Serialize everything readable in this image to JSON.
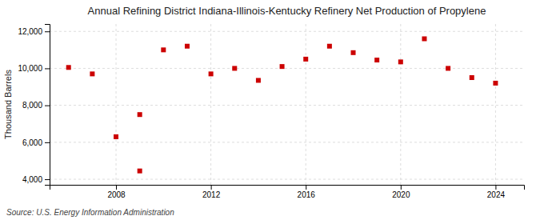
{
  "chart_data": {
    "type": "scatter",
    "title": "Annual Refining District Indiana-Illinois-Kentucky Refinery Net Production of Propylene",
    "ylabel": "Thousand Barrels",
    "source": "Source: U.S. Energy Information Administration",
    "x": [
      2006,
      2007,
      2008,
      2009,
      2009,
      2010,
      2011,
      2012,
      2013,
      2014,
      2015,
      2016,
      2017,
      2018,
      2019,
      2020,
      2021,
      2022,
      2023,
      2024
    ],
    "values": [
      10050,
      9700,
      6300,
      4450,
      7500,
      11000,
      11200,
      9700,
      10000,
      9350,
      10100,
      10500,
      11200,
      10850,
      10450,
      10350,
      11600,
      10000,
      9500,
      9200
    ],
    "color": "#cc0000",
    "marker": "square",
    "xlim": [
      2005.2,
      2025.2
    ],
    "xticks": [
      2008,
      2012,
      2016,
      2020,
      2024
    ],
    "ylim": [
      3700,
      12400
    ],
    "yticks": [
      {
        "value": 4000,
        "label": "4,000"
      },
      {
        "value": 6000,
        "label": "6,000"
      },
      {
        "value": 8000,
        "label": "8,000"
      },
      {
        "value": 10000,
        "label": "10,000"
      },
      {
        "value": 12000,
        "label": "12,000"
      }
    ],
    "grid": true
  }
}
